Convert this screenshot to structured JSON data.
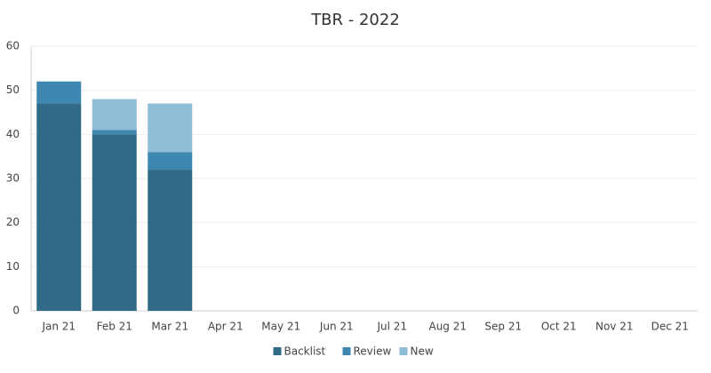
{
  "chart_data": {
    "type": "stacked_bar",
    "title": "TBR - 2022",
    "categories": [
      "Jan 21",
      "Feb 21",
      "Mar 21",
      "Apr 21",
      "May 21",
      "Jun 21",
      "Jul 21",
      "Aug 21",
      "Sep 21",
      "Oct 21",
      "Nov 21",
      "Dec 21"
    ],
    "series": [
      {
        "name": "Backlist",
        "color": "#306a87",
        "values": [
          47,
          40,
          32,
          null,
          null,
          null,
          null,
          null,
          null,
          null,
          null,
          null
        ]
      },
      {
        "name": "Review",
        "color": "#3d87b0",
        "values": [
          5,
          1,
          4,
          null,
          null,
          null,
          null,
          null,
          null,
          null,
          null,
          null
        ]
      },
      {
        "name": "New",
        "color": "#8fbcd6",
        "values": [
          0,
          7,
          11,
          null,
          null,
          null,
          null,
          null,
          null,
          null,
          null,
          null
        ]
      }
    ],
    "ylim": [
      0,
      60
    ],
    "yticks": [
      0,
      10,
      20,
      30,
      40,
      50,
      60
    ],
    "grid": true,
    "legend": "bottom"
  }
}
